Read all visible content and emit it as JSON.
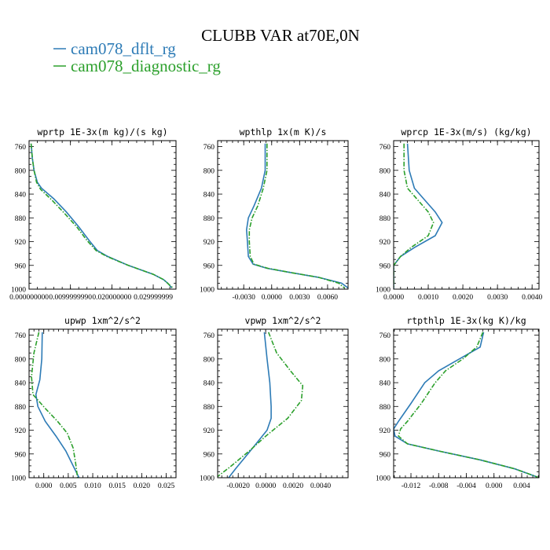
{
  "title": "CLUBB VAR at70E,0N",
  "legend": [
    {
      "label": "cam078_dflt_rg",
      "color": "#2d7bb6",
      "dash": false
    },
    {
      "label": "cam078_diagnostic_rg",
      "color": "#2ca02c",
      "dash": true
    }
  ],
  "chart_data": [
    {
      "type": "line",
      "title": "wprtp  1E-3x(m kg)/(s kg)",
      "xlim": [
        0.0,
        0.0355
      ],
      "ylim": [
        1000,
        750
      ],
      "xticks": [
        0.0,
        0.00999999,
        0.02,
        0.0299999
      ],
      "xtick_labels": [
        "0.000000000",
        "0.0099999990",
        "0.020000000",
        "0.029999999"
      ],
      "yticks": [
        760,
        800,
        840,
        880,
        920,
        960,
        1000
      ],
      "series": [
        {
          "name": "cam078_dflt_rg",
          "points": [
            [
              0.0005,
              755
            ],
            [
              0.0008,
              780
            ],
            [
              0.0012,
              800
            ],
            [
              0.002,
              820
            ],
            [
              0.003,
              830
            ],
            [
              0.006,
              848
            ],
            [
              0.009,
              870
            ],
            [
              0.012,
              895
            ],
            [
              0.0145,
              918
            ],
            [
              0.0165,
              935
            ],
            [
              0.019,
              945
            ],
            [
              0.024,
              960
            ],
            [
              0.03,
              975
            ],
            [
              0.0325,
              984
            ],
            [
              0.0335,
              990
            ],
            [
              0.0345,
              998
            ]
          ]
        },
        {
          "name": "cam078_diagnostic_rg",
          "points": [
            [
              0.0005,
              755
            ],
            [
              0.0008,
              780
            ],
            [
              0.0012,
              800
            ],
            [
              0.0018,
              820
            ],
            [
              0.0028,
              832
            ],
            [
              0.0055,
              850
            ],
            [
              0.0085,
              872
            ],
            [
              0.0115,
              895
            ],
            [
              0.014,
              918
            ],
            [
              0.0162,
              935
            ],
            [
              0.0188,
              945
            ],
            [
              0.024,
              960
            ],
            [
              0.03,
              975
            ],
            [
              0.0325,
              984
            ],
            [
              0.0338,
              992
            ],
            [
              0.0348,
              998
            ]
          ]
        }
      ]
    },
    {
      "type": "line",
      "title": "wpthlp  1x(m K)/s",
      "xlim": [
        -0.0058,
        0.0082
      ],
      "ylim": [
        1000,
        750
      ],
      "xticks": [
        -0.003,
        0.0,
        0.003,
        0.006
      ],
      "xtick_labels": [
        "-0.0030",
        "0.0000",
        "0.0030",
        "0.0060"
      ],
      "yticks": [
        760,
        800,
        840,
        880,
        920,
        960,
        1000
      ],
      "series": [
        {
          "name": "cam078_dflt_rg",
          "points": [
            [
              -0.0007,
              755
            ],
            [
              -0.0007,
              800
            ],
            [
              -0.0011,
              830
            ],
            [
              -0.0019,
              860
            ],
            [
              -0.0025,
              880
            ],
            [
              -0.0027,
              900
            ],
            [
              -0.0026,
              920
            ],
            [
              -0.0025,
              945
            ],
            [
              -0.002,
              958
            ],
            [
              -0.0005,
              965
            ],
            [
              0.002,
              972
            ],
            [
              0.005,
              980
            ],
            [
              0.0075,
              990
            ],
            [
              0.0082,
              998
            ]
          ]
        },
        {
          "name": "cam078_diagnostic_rg",
          "points": [
            [
              -0.0005,
              755
            ],
            [
              -0.0005,
              800
            ],
            [
              -0.0009,
              830
            ],
            [
              -0.0015,
              860
            ],
            [
              -0.0021,
              880
            ],
            [
              -0.0024,
              900
            ],
            [
              -0.0024,
              920
            ],
            [
              -0.0023,
              945
            ],
            [
              -0.0019,
              958
            ],
            [
              -0.0004,
              965
            ],
            [
              0.002,
              972
            ],
            [
              0.005,
              980
            ],
            [
              0.0072,
              990
            ],
            [
              0.0078,
              998
            ]
          ]
        }
      ]
    },
    {
      "type": "line",
      "title": "wprcp  1E-3x(m/s) (kg/kg)",
      "xlim": [
        0.0,
        0.0042
      ],
      "ylim": [
        1000,
        750
      ],
      "xticks": [
        0.0,
        0.001,
        0.002,
        0.003,
        0.004
      ],
      "xtick_labels": [
        "0.0000",
        "0.0010",
        "0.0020",
        "0.0030",
        "0.0040"
      ],
      "yticks": [
        760,
        800,
        840,
        880,
        920,
        960,
        1000
      ],
      "series": [
        {
          "name": "cam078_dflt_rg",
          "points": [
            [
              0.0004,
              755
            ],
            [
              0.00045,
              800
            ],
            [
              0.0006,
              830
            ],
            [
              0.0009,
              850
            ],
            [
              0.0012,
              870
            ],
            [
              0.0014,
              888
            ],
            [
              0.0012,
              910
            ],
            [
              0.0006,
              930
            ],
            [
              0.0002,
              945
            ],
            [
              0.0,
              960
            ],
            [
              0.0,
              1000
            ]
          ]
        },
        {
          "name": "cam078_diagnostic_rg",
          "points": [
            [
              0.0003,
              755
            ],
            [
              0.0003,
              800
            ],
            [
              0.0004,
              830
            ],
            [
              0.0007,
              850
            ],
            [
              0.001,
              870
            ],
            [
              0.00115,
              888
            ],
            [
              0.001,
              910
            ],
            [
              0.0005,
              930
            ],
            [
              0.0002,
              945
            ],
            [
              0.0,
              960
            ],
            [
              0.0,
              1000
            ]
          ]
        }
      ]
    },
    {
      "type": "line",
      "title": "upwp  1xm^2/s^2",
      "xlim": [
        -0.003,
        0.027
      ],
      "ylim": [
        1000,
        750
      ],
      "xticks": [
        0.0,
        0.005,
        0.01,
        0.015,
        0.02,
        0.025
      ],
      "xtick_labels": [
        "0.000",
        "0.005",
        "0.010",
        "0.015",
        "0.020",
        "0.025"
      ],
      "yticks": [
        760,
        800,
        840,
        880,
        920,
        960,
        1000
      ],
      "series": [
        {
          "name": "cam078_dflt_rg",
          "points": [
            [
              -0.0003,
              755
            ],
            [
              -0.0004,
              800
            ],
            [
              -0.0008,
              835
            ],
            [
              -0.0016,
              860
            ],
            [
              -0.0012,
              880
            ],
            [
              0.0003,
              905
            ],
            [
              0.0025,
              930
            ],
            [
              0.0045,
              955
            ],
            [
              0.006,
              980
            ],
            [
              0.0072,
              1000
            ]
          ]
        },
        {
          "name": "cam078_diagnostic_rg",
          "points": [
            [
              -0.001,
              755
            ],
            [
              -0.002,
              790
            ],
            [
              -0.0025,
              830
            ],
            [
              -0.0022,
              860
            ],
            [
              0.0005,
              885
            ],
            [
              0.0028,
              905
            ],
            [
              0.0048,
              925
            ],
            [
              0.006,
              950
            ],
            [
              0.0065,
              975
            ],
            [
              0.0069,
              1000
            ]
          ]
        }
      ]
    },
    {
      "type": "line",
      "title": "vpwp  1xm^2/s^2",
      "xlim": [
        -0.0035,
        0.006
      ],
      "ylim": [
        1000,
        750
      ],
      "xticks": [
        -0.002,
        0.0,
        0.002,
        0.004
      ],
      "xtick_labels": [
        "-0.0020",
        "0.0000",
        "0.0020",
        "0.0040"
      ],
      "yticks": [
        760,
        800,
        840,
        880,
        920,
        960,
        1000
      ],
      "series": [
        {
          "name": "cam078_dflt_rg",
          "points": [
            [
              -0.0001,
              755
            ],
            [
              0.0001,
              800
            ],
            [
              0.0003,
              840
            ],
            [
              0.0004,
              880
            ],
            [
              0.0004,
              900
            ],
            [
              0.0001,
              920
            ],
            [
              -0.0006,
              940
            ],
            [
              -0.0013,
              960
            ],
            [
              -0.0022,
              985
            ],
            [
              -0.0027,
              1000
            ]
          ]
        },
        {
          "name": "cam078_diagnostic_rg",
          "points": [
            [
              0.0002,
              755
            ],
            [
              0.0008,
              790
            ],
            [
              0.0018,
              820
            ],
            [
              0.0027,
              845
            ],
            [
              0.0026,
              870
            ],
            [
              0.0016,
              900
            ],
            [
              0.0,
              930
            ],
            [
              -0.0012,
              955
            ],
            [
              -0.0025,
              980
            ],
            [
              -0.0035,
              998
            ]
          ]
        }
      ]
    },
    {
      "type": "line",
      "title": "rtpthlp  1E-3x(kg K)/kg",
      "xlim": [
        -0.0145,
        0.0065
      ],
      "ylim": [
        1000,
        750
      ],
      "xticks": [
        -0.012,
        -0.008,
        -0.004,
        0.0,
        0.004
      ],
      "xtick_labels": [
        "-0.012",
        "-0.008",
        "-0.004",
        "0.000",
        "0.004"
      ],
      "yticks": [
        760,
        800,
        840,
        880,
        920,
        960,
        1000
      ],
      "series": [
        {
          "name": "cam078_dflt_rg",
          "points": [
            [
              -0.0015,
              755
            ],
            [
              -0.002,
              780
            ],
            [
              -0.005,
              800
            ],
            [
              -0.008,
              820
            ],
            [
              -0.01,
              840
            ],
            [
              -0.012,
              875
            ],
            [
              -0.0138,
              905
            ],
            [
              -0.0145,
              918
            ],
            [
              -0.0143,
              930
            ],
            [
              -0.0125,
              943
            ],
            [
              -0.008,
              955
            ],
            [
              -0.002,
              970
            ],
            [
              0.003,
              985
            ],
            [
              0.0063,
              999
            ]
          ]
        },
        {
          "name": "cam078_diagnostic_rg",
          "points": [
            [
              -0.0016,
              755
            ],
            [
              -0.0025,
              780
            ],
            [
              -0.0045,
              800
            ],
            [
              -0.007,
              820
            ],
            [
              -0.0085,
              840
            ],
            [
              -0.0105,
              875
            ],
            [
              -0.0125,
              905
            ],
            [
              -0.0135,
              918
            ],
            [
              -0.0138,
              930
            ],
            [
              -0.0125,
              943
            ],
            [
              -0.008,
              955
            ],
            [
              -0.002,
              970
            ],
            [
              0.003,
              985
            ],
            [
              0.0063,
              999
            ]
          ]
        }
      ]
    }
  ]
}
